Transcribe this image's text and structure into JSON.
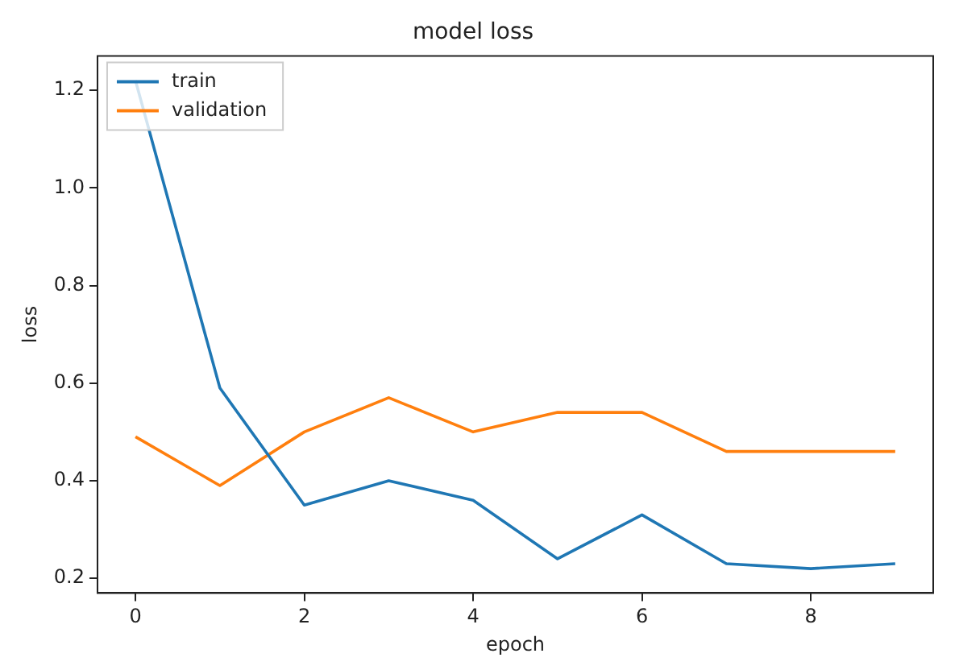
{
  "chart_data": {
    "type": "line",
    "title": "model loss",
    "xlabel": "epoch",
    "ylabel": "loss",
    "x": [
      0,
      1,
      2,
      3,
      4,
      5,
      6,
      7,
      8,
      9
    ],
    "series": [
      {
        "name": "train",
        "color": "#1f77b4",
        "values": [
          1.22,
          0.59,
          0.35,
          0.4,
          0.36,
          0.24,
          0.33,
          0.23,
          0.22,
          0.23
        ]
      },
      {
        "name": "validation",
        "color": "#ff7f0e",
        "values": [
          0.49,
          0.39,
          0.5,
          0.57,
          0.5,
          0.54,
          0.54,
          0.46,
          0.46,
          0.46
        ]
      }
    ],
    "xlim": [
      -0.45,
      9.45
    ],
    "xticks": [
      0,
      2,
      4,
      6,
      8
    ],
    "ylim": [
      0.17,
      1.27
    ],
    "yticks": [
      0.2,
      0.4,
      0.6,
      0.8,
      {
        "value": 1.0,
        "label": "1.0"
      },
      1.2
    ],
    "grid": false,
    "legend": "top left",
    "marker": "none",
    "line_style": "solid"
  }
}
